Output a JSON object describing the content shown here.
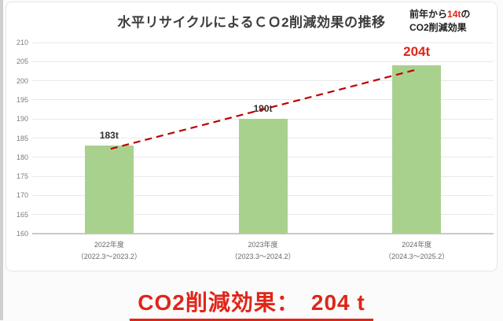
{
  "page": {
    "title": "水平リサイクルによるＣＯ2削減効果の推移",
    "annotation": {
      "line1_prefix": "前年から",
      "line1_highlight": "14t",
      "line1_suffix": "の",
      "line2": "CO2削減効果"
    },
    "caption": "CO2削減効果：　204 t"
  },
  "colors": {
    "bar_green": "#a9d18e",
    "accent_red": "#e02518",
    "trendline_red": "#c00000",
    "gridline": "#e9e9e9",
    "axis_line": "#c9c9c9",
    "title_text": "#3d3d3d",
    "axis_text": "#7c7c7c"
  },
  "chart_data": {
    "type": "bar",
    "title": "水平リサイクルによるＣＯ2削減効果の推移",
    "categories": [
      {
        "line1": "2022年度",
        "line2": "（2022.3〜2023.2）"
      },
      {
        "line1": "2023年度",
        "line2": "（2023.3〜2024.2）"
      },
      {
        "line1": "2024年度",
        "line2": "（2024.3〜2025.2）"
      }
    ],
    "values": [
      183,
      190,
      204
    ],
    "value_labels": [
      "183t",
      "190t",
      "204t"
    ],
    "highlighted_value_index": 2,
    "xlabel": "",
    "ylabel": "",
    "ylim": [
      160,
      210
    ],
    "ytick_step": 5,
    "grid": true,
    "legend": "none",
    "annotations": [
      {
        "text": "前年から14tの CO2削減効果",
        "position": "top-right"
      },
      {
        "text": "CO2削減効果：　204 t",
        "position": "bottom-center"
      }
    ],
    "trendline": {
      "type": "linear",
      "style": "dashed",
      "connects": "tops of bars 183t to 204t"
    }
  }
}
